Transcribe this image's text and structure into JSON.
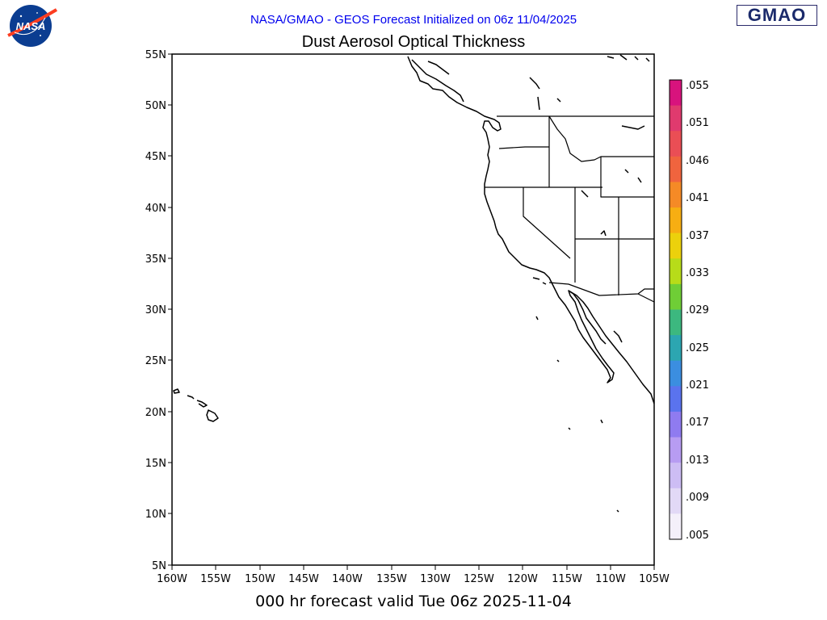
{
  "header": {
    "agency_logo_text": "NASA",
    "run_title": "NASA/GMAO - GEOS Forecast Initialized on 06z 11/04/2025",
    "run_title_color": "#0000ee",
    "field_title": "Dust Aerosol Optical Thickness",
    "gmao_logo_text": "GMAO"
  },
  "footer": {
    "valid_time": "000 hr forecast valid Tue 06z 2025-11-04"
  },
  "map": {
    "projection": "cylindrical equidistant",
    "lon_range": [
      -160,
      -105
    ],
    "lat_range": [
      5,
      55
    ],
    "lat_ticks": [
      "55N",
      "50N",
      "45N",
      "40N",
      "35N",
      "30N",
      "25N",
      "20N",
      "15N",
      "10N",
      "5N"
    ],
    "lon_ticks": [
      "160W",
      "155W",
      "150W",
      "145W",
      "140W",
      "135W",
      "130W",
      "125W",
      "120W",
      "115W",
      "110W",
      "105W"
    ],
    "field_values_visible": "below lowest contour (blank)",
    "coastline_color": "#000000"
  },
  "colorbar": {
    "labels": [
      ".055",
      ".051",
      ".046",
      ".041",
      ".037",
      ".033",
      ".029",
      ".025",
      ".021",
      ".017",
      ".013",
      ".009",
      ".005"
    ],
    "colors_top_to_bottom": [
      "#d8137d",
      "#e03a6e",
      "#ea4e55",
      "#f0643e",
      "#f58a26",
      "#f7ae12",
      "#ecd10c",
      "#b7dc19",
      "#6fce36",
      "#3cb87f",
      "#2ca6b1",
      "#3b8ee0",
      "#5a73ee",
      "#8f7bf0",
      "#b79cf2",
      "#cdbdf4",
      "#e2d9f6",
      "#f4f0fa"
    ]
  }
}
